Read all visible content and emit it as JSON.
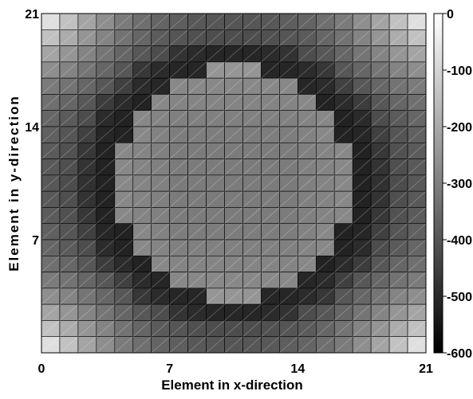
{
  "chart_data": {
    "type": "heatmap",
    "title": "",
    "xlabel": "Element in x-direction",
    "ylabel": "Element in y-direction",
    "xlim": [
      0,
      21
    ],
    "ylim": [
      0,
      21
    ],
    "x_ticks": [
      "0",
      "7",
      "14",
      "21"
    ],
    "y_ticks": [
      "7",
      "14",
      "21"
    ],
    "colorbar": {
      "range": [
        -600,
        0
      ],
      "ticks": [
        "0",
        "-100",
        "-200",
        "-300",
        "-400",
        "-500",
        "-600"
      ],
      "colormap": "gray",
      "low_color": "#000000",
      "high_color": "#ffffff"
    },
    "grid_size": [
      21,
      21
    ],
    "rows_top_to_bottom": [
      [
        -75,
        -145,
        -215,
        -265,
        -310,
        -340,
        -365,
        -380,
        -392,
        -398,
        -400,
        -398,
        -392,
        -380,
        -365,
        -340,
        -310,
        -265,
        -215,
        -145,
        -75
      ],
      [
        -145,
        -195,
        -250,
        -290,
        -330,
        -360,
        -385,
        -400,
        -412,
        -418,
        -420,
        -418,
        -412,
        -400,
        -385,
        -360,
        -330,
        -290,
        -250,
        -195,
        -145
      ],
      [
        -215,
        -250,
        -290,
        -325,
        -360,
        -395,
        -420,
        -480,
        -500,
        -510,
        -510,
        -510,
        -500,
        -480,
        -420,
        -395,
        -360,
        -325,
        -290,
        -250,
        -215
      ],
      [
        -265,
        -290,
        -325,
        -360,
        -395,
        -470,
        -500,
        -510,
        -510,
        -250,
        -250,
        -250,
        -510,
        -510,
        -500,
        -470,
        -395,
        -360,
        -325,
        -290,
        -265
      ],
      [
        -310,
        -330,
        -360,
        -395,
        -450,
        -500,
        -510,
        -280,
        -280,
        -280,
        -280,
        -280,
        -280,
        -280,
        -510,
        -500,
        -450,
        -395,
        -360,
        -330,
        -310
      ],
      [
        -340,
        -360,
        -395,
        -460,
        -500,
        -520,
        -280,
        -290,
        -290,
        -290,
        -290,
        -290,
        -290,
        -290,
        -280,
        -520,
        -500,
        -460,
        -395,
        -360,
        -340
      ],
      [
        -360,
        -385,
        -420,
        -500,
        -520,
        -280,
        -290,
        -300,
        -300,
        -300,
        -300,
        -300,
        -300,
        -300,
        -290,
        -280,
        -520,
        -500,
        -420,
        -385,
        -360
      ],
      [
        -375,
        -400,
        -450,
        -510,
        -520,
        -280,
        -295,
        -305,
        -305,
        -305,
        -305,
        -305,
        -305,
        -305,
        -295,
        -280,
        -520,
        -510,
        -450,
        -400,
        -375
      ],
      [
        -385,
        -410,
        -470,
        -520,
        -280,
        -290,
        -300,
        -310,
        -310,
        -310,
        -310,
        -310,
        -310,
        -310,
        -300,
        -290,
        -280,
        -520,
        -470,
        -410,
        -385
      ],
      [
        -390,
        -415,
        -480,
        -520,
        -280,
        -290,
        -300,
        -310,
        -310,
        -310,
        -310,
        -310,
        -310,
        -310,
        -300,
        -290,
        -280,
        -520,
        -480,
        -415,
        -390
      ],
      [
        -392,
        -418,
        -485,
        -520,
        -280,
        -290,
        -300,
        -310,
        -310,
        -310,
        -310,
        -310,
        -310,
        -310,
        -300,
        -290,
        -280,
        -520,
        -485,
        -418,
        -392
      ],
      [
        -390,
        -415,
        -480,
        -520,
        -280,
        -290,
        -300,
        -310,
        -310,
        -310,
        -310,
        -310,
        -310,
        -310,
        -300,
        -290,
        -280,
        -520,
        -480,
        -415,
        -390
      ],
      [
        -385,
        -410,
        -470,
        -520,
        -280,
        -290,
        -300,
        -310,
        -310,
        -310,
        -310,
        -310,
        -310,
        -310,
        -300,
        -290,
        -280,
        -520,
        -470,
        -410,
        -385
      ],
      [
        -375,
        -400,
        -450,
        -510,
        -520,
        -280,
        -295,
        -305,
        -305,
        -305,
        -305,
        -305,
        -305,
        -305,
        -295,
        -280,
        -520,
        -510,
        -450,
        -400,
        -375
      ],
      [
        -360,
        -385,
        -420,
        -500,
        -520,
        -280,
        -290,
        -300,
        -300,
        -300,
        -300,
        -300,
        -300,
        -300,
        -290,
        -280,
        -520,
        -500,
        -420,
        -385,
        -360
      ],
      [
        -340,
        -360,
        -395,
        -460,
        -500,
        -520,
        -280,
        -290,
        -290,
        -290,
        -290,
        -290,
        -290,
        -290,
        -280,
        -520,
        -500,
        -460,
        -395,
        -360,
        -340
      ],
      [
        -310,
        -330,
        -360,
        -395,
        -450,
        -500,
        -510,
        -280,
        -280,
        -280,
        -280,
        -280,
        -280,
        -280,
        -510,
        -500,
        -450,
        -395,
        -360,
        -330,
        -310
      ],
      [
        -265,
        -290,
        -325,
        -360,
        -395,
        -470,
        -500,
        -510,
        -510,
        -250,
        -250,
        -250,
        -510,
        -510,
        -500,
        -470,
        -395,
        -360,
        -325,
        -290,
        -265
      ],
      [
        -215,
        -250,
        -290,
        -325,
        -360,
        -395,
        -420,
        -480,
        -500,
        -510,
        -510,
        -510,
        -500,
        -480,
        -420,
        -395,
        -360,
        -325,
        -290,
        -250,
        -215
      ],
      [
        -145,
        -195,
        -250,
        -290,
        -330,
        -360,
        -385,
        -400,
        -412,
        -418,
        -420,
        -418,
        -412,
        -400,
        -385,
        -360,
        -330,
        -290,
        -250,
        -195,
        -145
      ],
      [
        -75,
        -145,
        -215,
        -265,
        -310,
        -340,
        -365,
        -380,
        -392,
        -398,
        -400,
        -398,
        -392,
        -380,
        -365,
        -340,
        -310,
        -265,
        -215,
        -145,
        -75
      ]
    ]
  }
}
